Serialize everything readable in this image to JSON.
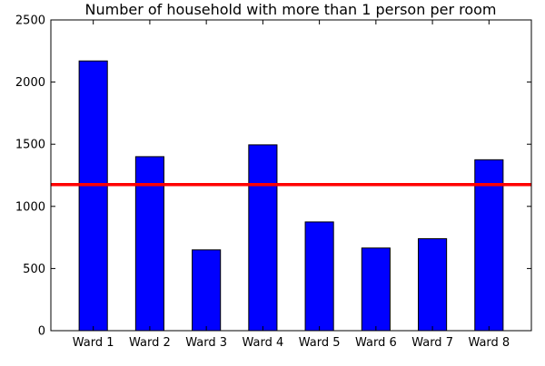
{
  "chart_data": {
    "type": "bar",
    "title": "Number of household with more than 1 person per room",
    "xlabel": "",
    "ylabel": "",
    "categories": [
      "Ward 1",
      "Ward 2",
      "Ward 3",
      "Ward 4",
      "Ward 5",
      "Ward 6",
      "Ward 7",
      "Ward 8"
    ],
    "values": [
      2170,
      1400,
      650,
      1495,
      875,
      665,
      740,
      1375
    ],
    "ylim": [
      0,
      2500
    ],
    "yticks": [
      0,
      500,
      1000,
      1500,
      2000,
      2500
    ],
    "reference_line": 1175,
    "grid": false,
    "legend": "none",
    "colors": {
      "bar_fill": "#0000ff",
      "bar_edge": "#000000",
      "reference_line": "#ff0000",
      "axes": "#000000"
    }
  }
}
